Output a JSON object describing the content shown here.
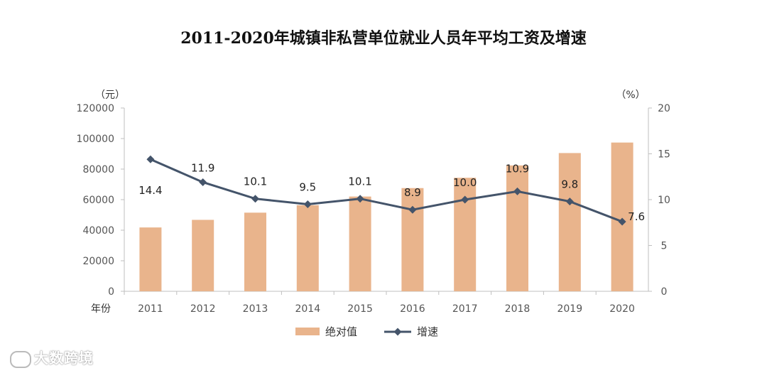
{
  "chart_data": {
    "type": "bar+line",
    "title": "2011-2020年城镇非私营单位就业人员年平均工资及增速",
    "xlabel": "年份",
    "ylabel_left": "（元）",
    "ylabel_right": "（%）",
    "categories": [
      "2011",
      "2012",
      "2013",
      "2014",
      "2015",
      "2016",
      "2017",
      "2018",
      "2019",
      "2020"
    ],
    "ylim_left": [
      0,
      120000
    ],
    "yticks_left": [
      "0",
      "20000",
      "40000",
      "60000",
      "80000",
      "100000",
      "120000"
    ],
    "ylim_right": [
      0,
      20
    ],
    "yticks_right": [
      "0",
      "5",
      "10",
      "15",
      "20"
    ],
    "series": [
      {
        "name": "绝对值",
        "type": "bar",
        "color": "#E9B48C",
        "values": [
          41799,
          46769,
          51483,
          56360,
          62029,
          67569,
          74318,
          82413,
          90501,
          97379
        ]
      },
      {
        "name": "增速",
        "type": "line",
        "color": "#44546A",
        "values": [
          14.4,
          11.9,
          10.1,
          9.5,
          10.1,
          8.9,
          10.0,
          10.9,
          9.8,
          7.6
        ],
        "labels": [
          "14.4",
          "11.9",
          "10.1",
          "9.5",
          "10.1",
          "8.9",
          "10.0",
          "10.9",
          "9.8",
          "7.6"
        ]
      }
    ],
    "legend": [
      "绝对值",
      "增速"
    ],
    "legend_position": "bottom"
  },
  "watermark": {
    "text": "大数跨境"
  }
}
